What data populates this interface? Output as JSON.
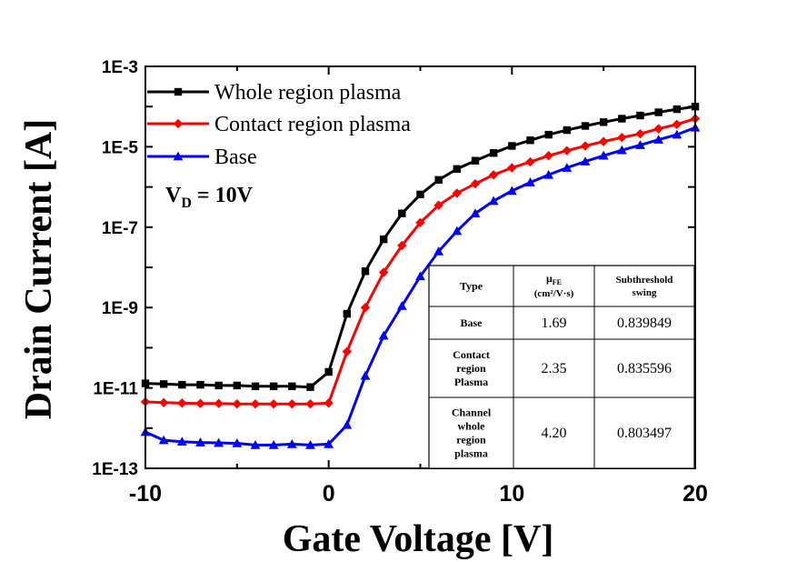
{
  "chart_data": {
    "type": "line",
    "title": "",
    "xlabel": "Gate Voltage [V]",
    "ylabel": "Drain Current [A]",
    "xlim": [
      -10,
      20
    ],
    "ylim": [
      1e-13,
      0.001
    ],
    "yscale": "log",
    "x_ticks": [
      "-10",
      "0",
      "10",
      "20"
    ],
    "y_ticks": [
      "1E-13",
      "1E-11",
      "1E-9",
      "1E-7",
      "1E-5",
      "1E-3"
    ],
    "legend_position": "top-left",
    "grid": false,
    "annotation": {
      "main": "V",
      "sub": "D",
      "rest": " = 10V"
    },
    "x": [
      -10,
      -9,
      -8,
      -7,
      -6,
      -5,
      -4,
      -3,
      -2,
      -1,
      0,
      1,
      2,
      3,
      4,
      5,
      6,
      7,
      8,
      9,
      10,
      11,
      12,
      13,
      14,
      15,
      16,
      17,
      18,
      19,
      20
    ],
    "series": [
      {
        "name": "Whole region plasma",
        "color": "#000000",
        "marker": "square",
        "values": [
          1.3e-11,
          1.25e-11,
          1.2e-11,
          1.2e-11,
          1.15e-11,
          1.15e-11,
          1.1e-11,
          1.1e-11,
          1.1e-11,
          1.05e-11,
          2.5e-11,
          7e-10,
          8e-09,
          5e-08,
          2.2e-07,
          6.5e-07,
          1.5e-06,
          2.8e-06,
          4.5e-06,
          7e-06,
          1.05e-05,
          1.45e-05,
          2e-05,
          2.6e-05,
          3.3e-05,
          4.1e-05,
          5e-05,
          6e-05,
          7.2e-05,
          8.6e-05,
          0.0001
        ]
      },
      {
        "name": "Contact region plasma",
        "color": "#ff0000",
        "marker": "diamond",
        "values": [
          4.5e-12,
          4.3e-12,
          4.2e-12,
          4.1e-12,
          4.1e-12,
          4e-12,
          4e-12,
          4e-12,
          4e-12,
          4e-12,
          4.2e-12,
          8e-11,
          1e-09,
          7.5e-09,
          3.5e-08,
          1.3e-07,
          3.5e-07,
          7e-07,
          1.2e-06,
          2e-06,
          3e-06,
          4.2e-06,
          6e-06,
          8e-06,
          1.05e-05,
          1.35e-05,
          1.7e-05,
          2.1e-05,
          2.8e-05,
          3.6e-05,
          5e-05
        ]
      },
      {
        "name": "Base",
        "color": "#0000ff",
        "marker": "triangle",
        "values": [
          8e-13,
          5e-13,
          4.6e-13,
          4.4e-13,
          4.3e-13,
          4.2e-13,
          3.8e-13,
          3.8e-13,
          4e-13,
          3.8e-13,
          4e-13,
          1.2e-12,
          2e-11,
          2e-10,
          1.1e-09,
          6e-09,
          2.5e-08,
          8e-08,
          2.2e-07,
          4.5e-07,
          8e-07,
          1.3e-06,
          2e-06,
          3e-06,
          4.3e-06,
          6e-06,
          8.2e-06,
          1.1e-05,
          1.5e-05,
          2e-05,
          3e-05
        ]
      }
    ],
    "table": {
      "headers": [
        {
          "lines": [
            "Type"
          ]
        },
        {
          "lines": [
            "μ",
            "(cm²/V·s)"
          ],
          "sub": "FE"
        },
        {
          "lines": [
            "Subthreshold",
            "swing"
          ]
        }
      ],
      "rows": [
        {
          "type": [
            "Base"
          ],
          "mobility": "1.69",
          "swing": "0.839849"
        },
        {
          "type": [
            "Contact",
            "region",
            "Plasma"
          ],
          "mobility": "2.35",
          "swing": "0.835596"
        },
        {
          "type": [
            "Channel",
            "whole",
            "region",
            "plasma"
          ],
          "mobility": "4.20",
          "swing": "0.803497"
        }
      ]
    }
  }
}
